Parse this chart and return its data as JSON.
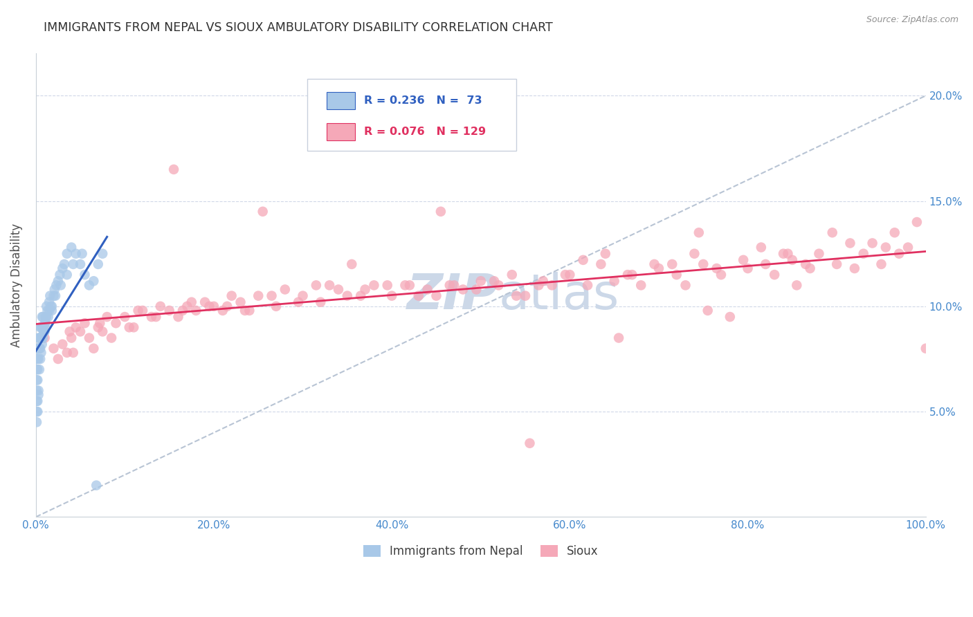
{
  "title": "IMMIGRANTS FROM NEPAL VS SIOUX AMBULATORY DISABILITY CORRELATION CHART",
  "source": "Source: ZipAtlas.com",
  "ylabel": "Ambulatory Disability",
  "legend1_label": "Immigrants from Nepal",
  "legend2_label": "Sioux",
  "R_nepal": 0.236,
  "N_nepal": 73,
  "R_sioux": 0.076,
  "N_sioux": 129,
  "color_nepal": "#a8c8e8",
  "color_sioux": "#f5a8b8",
  "trendline_nepal_color": "#3060c0",
  "trendline_sioux_color": "#e03060",
  "trendline_diagonal_color": "#b8c4d4",
  "watermark_color": "#ccd8e8",
  "title_color": "#303030",
  "axis_label_color": "#4488cc",
  "nepal_x": [
    0.1,
    0.1,
    0.1,
    0.1,
    0.1,
    0.2,
    0.2,
    0.2,
    0.2,
    0.3,
    0.3,
    0.3,
    0.4,
    0.4,
    0.5,
    0.5,
    0.5,
    0.6,
    0.6,
    0.7,
    0.7,
    0.8,
    0.8,
    0.9,
    1.0,
    1.0,
    1.1,
    1.2,
    1.3,
    1.4,
    1.5,
    1.6,
    1.7,
    1.8,
    2.0,
    2.1,
    2.3,
    2.5,
    2.7,
    3.0,
    3.2,
    3.5,
    4.0,
    4.5,
    5.0,
    5.5,
    6.0,
    6.5,
    7.0,
    7.5,
    0.1,
    0.1,
    0.2,
    0.2,
    0.3,
    0.3,
    0.4,
    0.5,
    0.6,
    0.7,
    0.8,
    0.9,
    1.0,
    1.1,
    1.2,
    1.5,
    1.8,
    2.2,
    2.8,
    3.5,
    4.2,
    5.2,
    6.8
  ],
  "nepal_y": [
    7.5,
    7.0,
    6.5,
    6.0,
    5.5,
    8.0,
    7.5,
    7.0,
    6.5,
    8.5,
    8.0,
    7.5,
    8.5,
    8.0,
    9.0,
    8.5,
    8.0,
    9.0,
    8.5,
    9.5,
    9.0,
    9.5,
    9.0,
    8.8,
    9.2,
    8.8,
    9.5,
    10.0,
    9.8,
    9.5,
    10.2,
    10.5,
    10.0,
    9.8,
    10.5,
    10.8,
    11.0,
    11.2,
    11.5,
    11.8,
    12.0,
    12.5,
    12.8,
    12.5,
    12.0,
    11.5,
    11.0,
    11.2,
    12.0,
    12.5,
    5.0,
    4.5,
    5.5,
    5.0,
    6.0,
    5.8,
    7.0,
    7.5,
    7.8,
    8.2,
    8.5,
    8.8,
    9.0,
    9.2,
    9.5,
    9.8,
    10.0,
    10.5,
    11.0,
    11.5,
    12.0,
    12.5,
    1.5
  ],
  "sioux_x": [
    1.0,
    2.0,
    3.0,
    3.5,
    4.0,
    4.5,
    5.0,
    5.5,
    6.0,
    7.0,
    7.5,
    8.0,
    9.0,
    10.0,
    11.0,
    12.0,
    13.0,
    14.0,
    15.0,
    16.0,
    17.0,
    18.0,
    19.0,
    20.0,
    21.0,
    22.0,
    23.0,
    24.0,
    25.0,
    27.0,
    28.0,
    30.0,
    32.0,
    33.0,
    35.0,
    37.0,
    38.0,
    40.0,
    42.0,
    44.0,
    45.0,
    47.0,
    48.0,
    50.0,
    52.0,
    55.0,
    57.0,
    58.0,
    60.0,
    62.0,
    65.0,
    67.0,
    68.0,
    70.0,
    72.0,
    73.0,
    75.0,
    77.0,
    80.0,
    82.0,
    83.0,
    85.0,
    87.0,
    88.0,
    90.0,
    92.0,
    93.0,
    95.0,
    97.0,
    98.0,
    2.5,
    4.2,
    6.5,
    8.5,
    10.5,
    13.5,
    16.5,
    19.5,
    23.5,
    26.5,
    29.5,
    34.0,
    36.5,
    39.5,
    43.0,
    46.5,
    49.5,
    53.5,
    56.5,
    59.5,
    63.5,
    66.5,
    69.5,
    74.0,
    76.5,
    79.5,
    84.0,
    86.5,
    89.5,
    94.0,
    3.8,
    7.2,
    11.5,
    17.5,
    21.5,
    31.5,
    41.5,
    51.5,
    61.5,
    71.5,
    81.5,
    91.5,
    96.5,
    99.0,
    100.0,
    78.0,
    54.0,
    64.0,
    74.5,
    84.5,
    15.5,
    25.5,
    35.5,
    45.5,
    55.5,
    65.5,
    75.5,
    85.5,
    95.5
  ],
  "sioux_y": [
    8.5,
    8.0,
    8.2,
    7.8,
    8.5,
    9.0,
    8.8,
    9.2,
    8.5,
    9.0,
    8.8,
    9.5,
    9.2,
    9.5,
    9.0,
    9.8,
    9.5,
    10.0,
    9.8,
    9.5,
    10.0,
    9.8,
    10.2,
    10.0,
    9.8,
    10.5,
    10.2,
    9.8,
    10.5,
    10.0,
    10.8,
    10.5,
    10.2,
    11.0,
    10.5,
    10.8,
    11.0,
    10.5,
    11.0,
    10.8,
    10.5,
    11.0,
    10.8,
    11.2,
    11.0,
    10.5,
    11.2,
    11.0,
    11.5,
    11.0,
    11.2,
    11.5,
    11.0,
    11.8,
    11.5,
    11.0,
    12.0,
    11.5,
    11.8,
    12.0,
    11.5,
    12.2,
    11.8,
    12.5,
    12.0,
    11.8,
    12.5,
    12.0,
    12.5,
    12.8,
    7.5,
    7.8,
    8.0,
    8.5,
    9.0,
    9.5,
    9.8,
    10.0,
    9.8,
    10.5,
    10.2,
    10.8,
    10.5,
    11.0,
    10.5,
    11.0,
    10.8,
    11.5,
    11.0,
    11.5,
    12.0,
    11.5,
    12.0,
    12.5,
    11.8,
    12.2,
    12.5,
    12.0,
    13.5,
    13.0,
    8.8,
    9.2,
    9.8,
    10.2,
    10.0,
    11.0,
    11.0,
    11.2,
    12.2,
    12.0,
    12.8,
    13.0,
    13.5,
    14.0,
    8.0,
    9.5,
    10.5,
    12.5,
    13.5,
    12.5,
    16.5,
    14.5,
    12.0,
    14.5,
    3.5,
    8.5,
    9.8,
    11.0,
    12.8
  ]
}
